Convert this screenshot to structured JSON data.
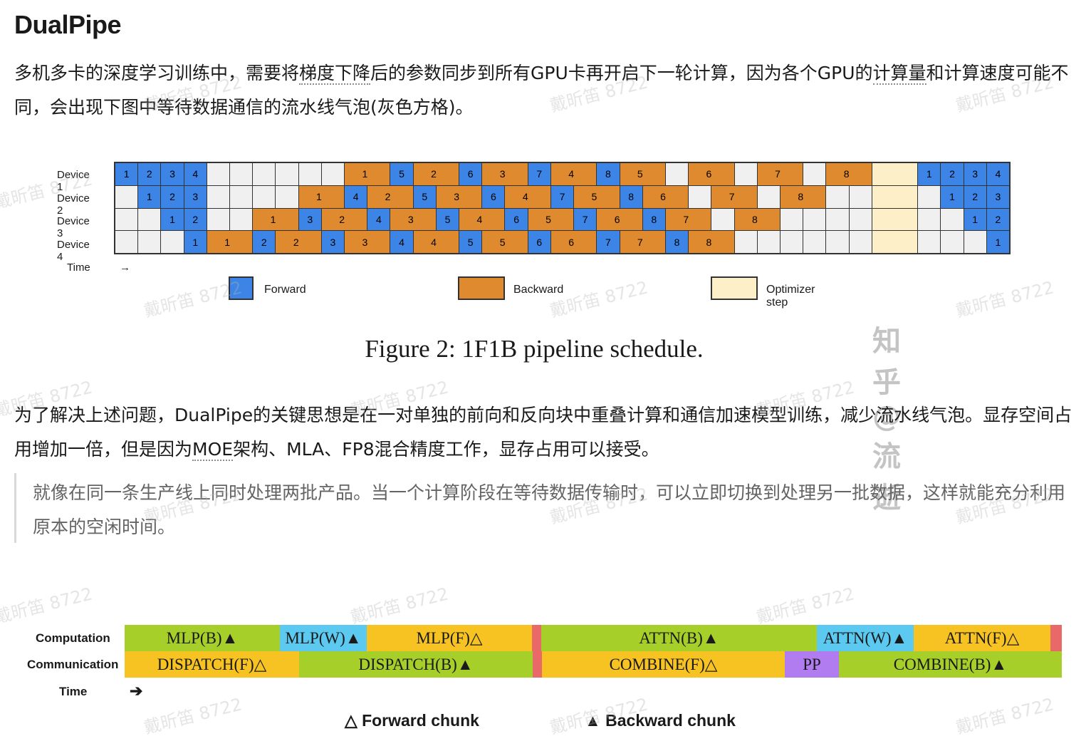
{
  "heading": "DualPipe",
  "paragraph1": {
    "part1": "多机多卡的深度学习训练中，需要将",
    "term1": "梯度下降",
    "part2": "后的参数同步到所有GPU卡再开启下一轮计算，因为各个GPU的",
    "term2": "计算量",
    "part3": "和计算速度可能不同，会出现下图中等待数据通信的流水线气泡(灰色方格)。"
  },
  "figure1": {
    "rows": [
      "Device 1",
      "Device 2",
      "Device 3",
      "Device 4"
    ],
    "time_label": "Time",
    "time_arrow": "→",
    "legend": [
      {
        "label": "Forward",
        "color": "#3c84e6"
      },
      {
        "label": "Backward",
        "color": "#e08a2f"
      },
      {
        "label": "Optimizer step",
        "color": "#fdf0c8"
      }
    ],
    "caption": "Figure 2: 1F1B pipeline schedule.",
    "schedule": [
      [
        "F1",
        "F2",
        "F3",
        "F4",
        "E",
        "E",
        "E",
        "E",
        "E",
        "E",
        "B1",
        "B1",
        "F5",
        "B2",
        "B2",
        "F6",
        "B3",
        "B3",
        "F7",
        "B4",
        "B4",
        "F8",
        "B5",
        "B5",
        "E",
        "B6",
        "B6",
        "E",
        "B7",
        "B7",
        "E",
        "B8",
        "B8",
        "O",
        "O",
        "F1",
        "F2",
        "F3",
        "F4"
      ],
      [
        "E",
        "F1",
        "F2",
        "F3",
        "E",
        "E",
        "E",
        "E",
        "B1",
        "B1",
        "F4",
        "B2",
        "B2",
        "F5",
        "B3",
        "B3",
        "F6",
        "B4",
        "B4",
        "F7",
        "B5",
        "B5",
        "F8",
        "B6",
        "B6",
        "E",
        "B7",
        "B7",
        "E",
        "B8",
        "B8",
        "E",
        "E",
        "O",
        "O",
        "E",
        "F1",
        "F2",
        "F3"
      ],
      [
        "E",
        "E",
        "F1",
        "F2",
        "E",
        "E",
        "B1",
        "B1",
        "F3",
        "B2",
        "B2",
        "F4",
        "B3",
        "B3",
        "F5",
        "B4",
        "B4",
        "F6",
        "B5",
        "B5",
        "F7",
        "B6",
        "B6",
        "F8",
        "B7",
        "B7",
        "E",
        "B8",
        "B8",
        "E",
        "E",
        "E",
        "E",
        "O",
        "O",
        "E",
        "E",
        "F1",
        "F2"
      ],
      [
        "E",
        "E",
        "E",
        "F1",
        "B1",
        "B1",
        "F2",
        "B2",
        "B2",
        "F3",
        "B3",
        "B3",
        "F4",
        "B4",
        "B4",
        "F5",
        "B5",
        "B5",
        "F6",
        "B6",
        "B6",
        "F7",
        "B7",
        "B7",
        "F8",
        "B8",
        "B8",
        "E",
        "E",
        "E",
        "E",
        "E",
        "E",
        "O",
        "O",
        "E",
        "E",
        "E",
        "F1"
      ]
    ]
  },
  "watermark_brand": "知乎 @流逝",
  "watermark_repeat": "戴昕笛 8722",
  "paragraph2": {
    "part1": "为了解决上述问题，DualPipe的关键思想是在一对单独的前向和反向块中重叠计算和通信加速模型训练，减少流水线气泡。显存空间占用增加一倍，但是因为",
    "term1": "MOE",
    "part2": "架构、MLA、FP8混合精度工作，显存占用可以接受。"
  },
  "quote": "就像在同一条生产线上同时处理两批产品。当一个计算阶段在等待数据传输时，可以立即切换到处理另一批数据，这样就能充分利用原本的空闲时间。",
  "figure2": {
    "row_labels": [
      "Computation",
      "Communication"
    ],
    "time_label": "Time",
    "time_arrow": "➔",
    "computation": [
      {
        "label": "MLP(B)▲",
        "color": "#a6cf2a"
      },
      {
        "label": "MLP(W)▲",
        "color": "#5ccaf0"
      },
      {
        "label": "MLP(F)△",
        "color": "#f7c323"
      },
      {
        "label": "",
        "color": "#e96868"
      },
      {
        "label": "ATTN(B)▲",
        "color": "#a6cf2a"
      },
      {
        "label": "ATTN(W)▲",
        "color": "#5ccaf0"
      },
      {
        "label": "ATTN(F)△",
        "color": "#f7c323"
      },
      {
        "label": "",
        "color": "#e96868"
      }
    ],
    "communication": [
      {
        "label": "DISPATCH(F)△",
        "color": "#f7c323"
      },
      {
        "label": "DISPATCH(B)▲",
        "color": "#a6cf2a"
      },
      {
        "label": "",
        "color": "#e96868"
      },
      {
        "label": "COMBINE(F)△",
        "color": "#f7c323"
      },
      {
        "label": "PP",
        "color": "#b07cf0"
      },
      {
        "label": "COMBINE(B)▲",
        "color": "#a6cf2a"
      }
    ],
    "legend_forward": "△ Forward chunk",
    "legend_backward": "▲ Backward chunk"
  }
}
